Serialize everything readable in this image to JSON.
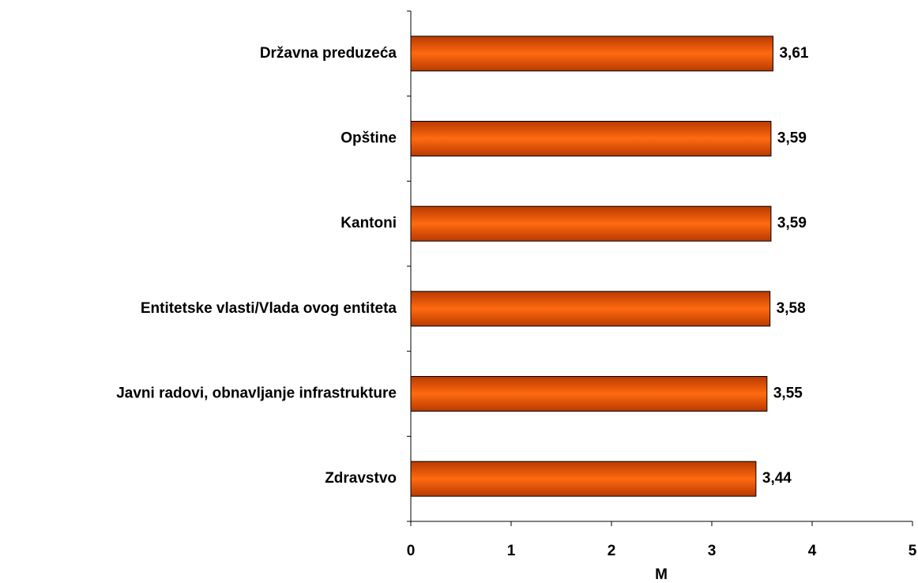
{
  "chart_data": {
    "type": "bar",
    "orientation": "horizontal",
    "categories": [
      "Državna preduzeća",
      "Opštine",
      "Kantoni",
      "Entitetske vlasti/Vlada ovog entiteta",
      "Javni radovi, obnavljanje infrastrukture",
      "Zdravstvo"
    ],
    "values": [
      3.61,
      3.59,
      3.59,
      3.58,
      3.55,
      3.44
    ],
    "value_labels": [
      "3,61",
      "3,59",
      "3,59",
      "3,58",
      "3,55",
      "3,44"
    ],
    "color": "#ff6600",
    "xlabel": "M",
    "xlim": [
      0,
      5
    ],
    "xticks": [
      0,
      1,
      2,
      3,
      4,
      5
    ]
  }
}
